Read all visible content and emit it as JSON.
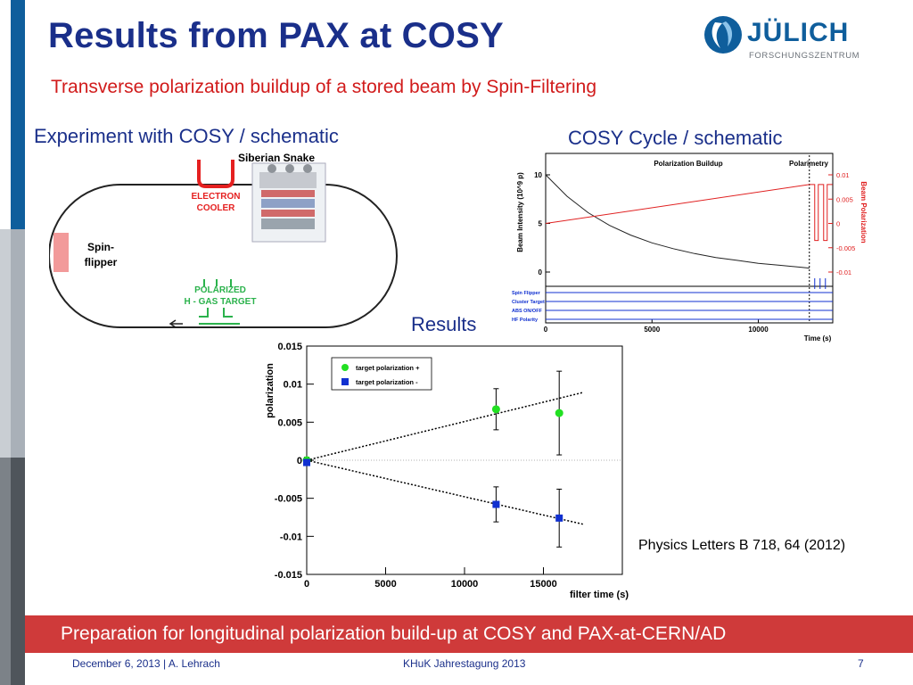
{
  "slide": {
    "title": "Results from PAX at COSY",
    "subtitle": "Transverse polarization buildup of a stored beam by Spin-Filtering",
    "experiment_label": "Experiment with COSY / schematic",
    "cycle_label": "COSY Cycle / schematic",
    "results_label": "Results",
    "reference": "Physics Letters B 718, 64 (2012)",
    "banner": "Preparation for longitudinal polarization build-up at COSY and PAX-at-CERN/AD"
  },
  "logo": {
    "word": "JÜLICH",
    "sub": "FORSCHUNGSZENTRUM"
  },
  "footer": {
    "date_author": "December 6, 2013 | A. Lehrach",
    "event": "KHuK Jahrestagung 2013",
    "page": "7"
  },
  "schematic": {
    "siberian_snake": "Siberian Snake",
    "electron_cooler_1": "ELECTRON",
    "electron_cooler_2": "COOLER",
    "spin_flipper_1": "Spin-",
    "spin_flipper_2": "flipper",
    "polarized_1": "POLARIZED",
    "polarized_2": "H - GAS TARGET"
  },
  "colors": {
    "title": "#1a2f8a",
    "accent_red": "#d11b1b",
    "brand_blue": "#0f5e9c",
    "banner": "#cf3a3a"
  },
  "chart_data": [
    {
      "type": "line",
      "title": "Polarization Buildup",
      "second_title": "Polarimetry",
      "xlabel": "Time (s)",
      "ylabel": "Beam Intensity (10^9 p)",
      "y2label": "Beam Polarization",
      "xlim": [
        0,
        13500
      ],
      "ylim": [
        0,
        10
      ],
      "y2lim": [
        -0.01,
        0.01
      ],
      "x_ticks": [
        "0",
        "5000",
        "10000"
      ],
      "y_ticks": [
        "10",
        "5",
        "0"
      ],
      "y2_ticks": [
        "0.01",
        "0.005",
        "0",
        "-0.005",
        "-0.01"
      ],
      "series": [
        {
          "name": "Beam Intensity",
          "color": "#222222",
          "x": [
            0,
            1000,
            2000,
            3000,
            4000,
            5000,
            6000,
            7000,
            8000,
            9000,
            10000,
            11000,
            12000,
            12400
          ],
          "y": [
            10,
            7.8,
            6.1,
            4.8,
            3.8,
            3.0,
            2.4,
            1.9,
            1.5,
            1.2,
            0.9,
            0.7,
            0.5,
            0.4
          ]
        },
        {
          "name": "Beam Polarization",
          "color": "#e02020",
          "axis": "y2",
          "x": [
            0,
            12400
          ],
          "y": [
            0.0,
            0.008
          ]
        }
      ],
      "signals": [
        "Spin Flipper",
        "Cluster Target",
        "ABS ON/OFF",
        "HF Polarity"
      ]
    },
    {
      "type": "scatter",
      "xlabel": "filter time (s)",
      "ylabel": "polarization",
      "xlim": [
        0,
        20000
      ],
      "ylim": [
        -0.015,
        0.015
      ],
      "x_ticks": [
        "0",
        "5000",
        "10000",
        "15000"
      ],
      "y_ticks": [
        "0.015",
        "0.01",
        "0.005",
        "0",
        "-0.005",
        "-0.01",
        "-0.015"
      ],
      "legend_placement": "top-left",
      "series": [
        {
          "name": "target polarization +",
          "color": "#22e022",
          "marker": "circle",
          "x": [
            0,
            12000,
            16000
          ],
          "y": [
            0.0,
            0.0067,
            0.0062
          ],
          "err": [
            0.0004,
            0.0027,
            0.0055
          ]
        },
        {
          "name": "target polarization -",
          "color": "#1030d0",
          "marker": "square",
          "x": [
            0,
            12000,
            16000
          ],
          "y": [
            -0.0003,
            -0.0058,
            -0.0076
          ],
          "err": [
            0.0004,
            0.0023,
            0.0038
          ]
        }
      ],
      "fits": [
        {
          "x": [
            0,
            17500
          ],
          "y": [
            0.0,
            0.0089
          ]
        },
        {
          "x": [
            0,
            17500
          ],
          "y": [
            0.0,
            -0.0084
          ]
        }
      ]
    }
  ]
}
